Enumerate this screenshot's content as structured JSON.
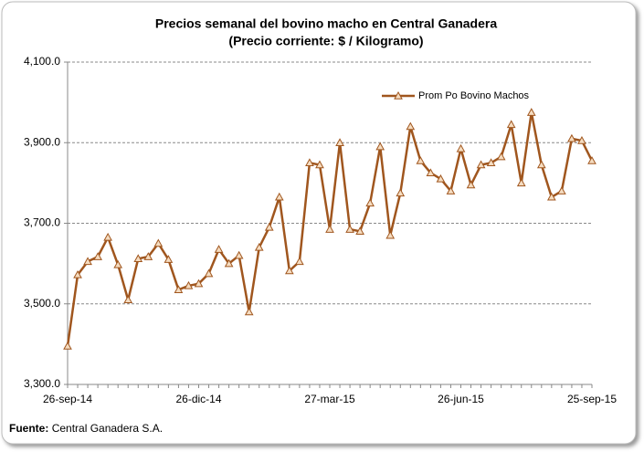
{
  "chart_data": {
    "type": "line",
    "title": "Precios semanal del bovino  macho en Central Ganadera",
    "subtitle": "(Precio corriente: $ / Kilogramo)",
    "categories": [
      "26-sep-14",
      null,
      null,
      null,
      null,
      null,
      null,
      null,
      null,
      null,
      null,
      null,
      null,
      "26-dic-14",
      null,
      null,
      null,
      null,
      null,
      null,
      null,
      null,
      null,
      null,
      null,
      null,
      "27-mar-15",
      null,
      null,
      null,
      null,
      null,
      null,
      null,
      null,
      null,
      null,
      null,
      null,
      "26-jun-15",
      null,
      null,
      null,
      null,
      null,
      null,
      null,
      null,
      null,
      null,
      null,
      null,
      "25-sep-15"
    ],
    "series": [
      {
        "name": "Prom Po Bovino Machos",
        "color": "#a0561e",
        "values": [
          3395,
          3572,
          3605,
          3617,
          3665,
          3597,
          3510,
          3612,
          3617,
          3650,
          3610,
          3535,
          3545,
          3550,
          3575,
          3635,
          3600,
          3620,
          3480,
          3640,
          3690,
          3765,
          3582,
          3605,
          3850,
          3845,
          3685,
          3900,
          3685,
          3680,
          3750,
          3890,
          3670,
          3775,
          3940,
          3855,
          3825,
          3810,
          3780,
          3885,
          3795,
          3845,
          3850,
          3865,
          3945,
          3800,
          3975,
          3845,
          3765,
          3780,
          3910,
          3905,
          3855
        ]
      }
    ],
    "ylim": [
      3300,
      4100
    ],
    "yticks": [
      {
        "value": 3300,
        "label": "3,300.0"
      },
      {
        "value": 3500,
        "label": "3,500.0"
      },
      {
        "value": 3700,
        "label": "3,700.0"
      },
      {
        "value": 3900,
        "label": "3,900.0"
      },
      {
        "value": 4100,
        "label": "4,100.0"
      }
    ],
    "grid": true,
    "legend": "top-right",
    "source_label": "Fuente:",
    "source": "Central Ganadera S.A."
  }
}
